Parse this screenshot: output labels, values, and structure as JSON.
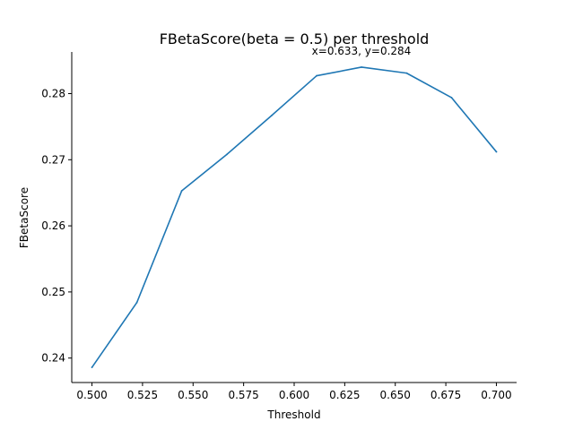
{
  "chart_data": {
    "type": "line",
    "title": "FBetaScore(beta = 0.5) per threshold",
    "xlabel": "Threshold",
    "ylabel": "FBetaScore",
    "annotation": "x=0.633, y=0.284",
    "x": [
      0.5,
      0.5222,
      0.5444,
      0.5667,
      0.5889,
      0.6111,
      0.6333,
      0.6556,
      0.6778,
      0.7
    ],
    "series": [
      {
        "values": [
          0.2386,
          0.2484,
          0.2653,
          0.2708,
          0.2767,
          0.2827,
          0.284,
          0.2831,
          0.2794,
          0.2712
        ]
      }
    ],
    "x_ticks": [
      0.5,
      0.525,
      0.55,
      0.575,
      0.6,
      0.625,
      0.65,
      0.675,
      0.7
    ],
    "x_tick_labels": [
      "0.500",
      "0.525",
      "0.550",
      "0.575",
      "0.600",
      "0.625",
      "0.650",
      "0.675",
      "0.700"
    ],
    "y_ticks": [
      0.24,
      0.25,
      0.26,
      0.27,
      0.28
    ],
    "y_tick_labels": [
      "0.24",
      "0.25",
      "0.26",
      "0.27",
      "0.28"
    ],
    "xlim": [
      0.49,
      0.71
    ],
    "ylim": [
      0.2363,
      0.2863
    ],
    "grid": false,
    "line_color": "#1f77b4",
    "spines": "left-bottom"
  }
}
